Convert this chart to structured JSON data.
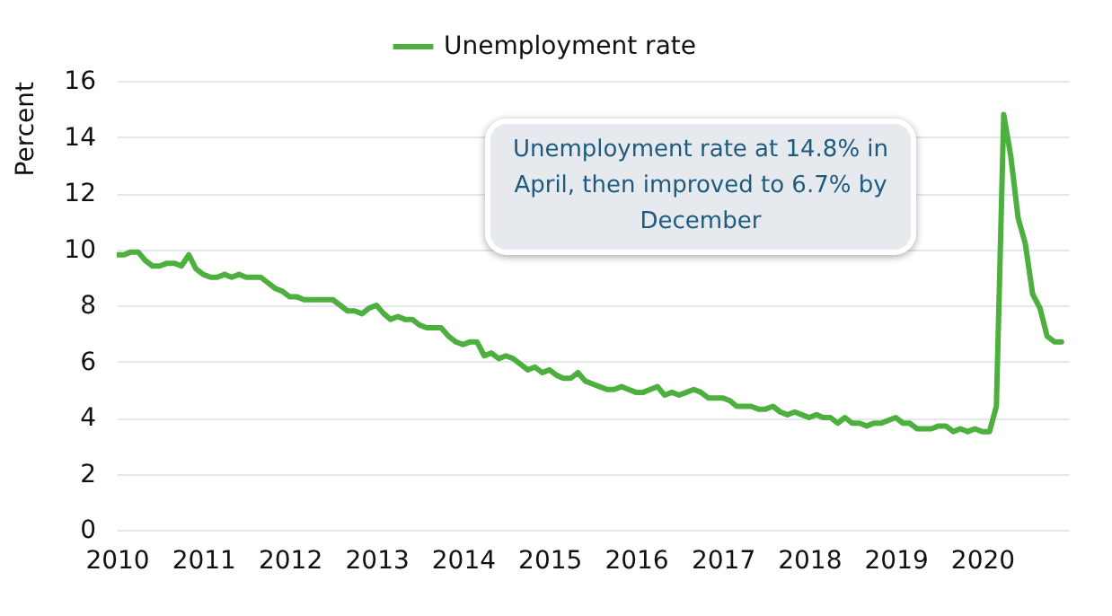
{
  "chart_data": {
    "type": "line",
    "ylabel": "Percent",
    "legend": "top",
    "grid": "y",
    "x": [
      "2010-01",
      "2010-02",
      "2010-03",
      "2010-04",
      "2010-05",
      "2010-06",
      "2010-07",
      "2010-08",
      "2010-09",
      "2010-10",
      "2010-11",
      "2010-12",
      "2011-01",
      "2011-02",
      "2011-03",
      "2011-04",
      "2011-05",
      "2011-06",
      "2011-07",
      "2011-08",
      "2011-09",
      "2011-10",
      "2011-11",
      "2011-12",
      "2012-01",
      "2012-02",
      "2012-03",
      "2012-04",
      "2012-05",
      "2012-06",
      "2012-07",
      "2012-08",
      "2012-09",
      "2012-10",
      "2012-11",
      "2012-12",
      "2013-01",
      "2013-02",
      "2013-03",
      "2013-04",
      "2013-05",
      "2013-06",
      "2013-07",
      "2013-08",
      "2013-09",
      "2013-10",
      "2013-11",
      "2013-12",
      "2014-01",
      "2014-02",
      "2014-03",
      "2014-04",
      "2014-05",
      "2014-06",
      "2014-07",
      "2014-08",
      "2014-09",
      "2014-10",
      "2014-11",
      "2014-12",
      "2015-01",
      "2015-02",
      "2015-03",
      "2015-04",
      "2015-05",
      "2015-06",
      "2015-07",
      "2015-08",
      "2015-09",
      "2015-10",
      "2015-11",
      "2015-12",
      "2016-01",
      "2016-02",
      "2016-03",
      "2016-04",
      "2016-05",
      "2016-06",
      "2016-07",
      "2016-08",
      "2016-09",
      "2016-10",
      "2016-11",
      "2016-12",
      "2017-01",
      "2017-02",
      "2017-03",
      "2017-04",
      "2017-05",
      "2017-06",
      "2017-07",
      "2017-08",
      "2017-09",
      "2017-10",
      "2017-11",
      "2017-12",
      "2018-01",
      "2018-02",
      "2018-03",
      "2018-04",
      "2018-05",
      "2018-06",
      "2018-07",
      "2018-08",
      "2018-09",
      "2018-10",
      "2018-11",
      "2018-12",
      "2019-01",
      "2019-02",
      "2019-03",
      "2019-04",
      "2019-05",
      "2019-06",
      "2019-07",
      "2019-08",
      "2019-09",
      "2019-10",
      "2019-11",
      "2019-12",
      "2020-01",
      "2020-02",
      "2020-03",
      "2020-04",
      "2020-05",
      "2020-06",
      "2020-07",
      "2020-08",
      "2020-09",
      "2020-10",
      "2020-11",
      "2020-12"
    ],
    "series": [
      {
        "name": "Unemployment rate",
        "color": "#4caf3e",
        "values": [
          9.8,
          9.8,
          9.9,
          9.9,
          9.6,
          9.4,
          9.4,
          9.5,
          9.5,
          9.4,
          9.8,
          9.3,
          9.1,
          9.0,
          9.0,
          9.1,
          9.0,
          9.1,
          9.0,
          9.0,
          9.0,
          8.8,
          8.6,
          8.5,
          8.3,
          8.3,
          8.2,
          8.2,
          8.2,
          8.2,
          8.2,
          8.0,
          7.8,
          7.8,
          7.7,
          7.9,
          8.0,
          7.7,
          7.5,
          7.6,
          7.5,
          7.5,
          7.3,
          7.2,
          7.2,
          7.2,
          6.9,
          6.7,
          6.6,
          6.7,
          6.7,
          6.2,
          6.3,
          6.1,
          6.2,
          6.1,
          5.9,
          5.7,
          5.8,
          5.6,
          5.7,
          5.5,
          5.4,
          5.4,
          5.6,
          5.3,
          5.2,
          5.1,
          5.0,
          5.0,
          5.1,
          5.0,
          4.9,
          4.9,
          5.0,
          5.1,
          4.8,
          4.9,
          4.8,
          4.9,
          5.0,
          4.9,
          4.7,
          4.7,
          4.7,
          4.6,
          4.4,
          4.4,
          4.4,
          4.3,
          4.3,
          4.4,
          4.2,
          4.1,
          4.2,
          4.1,
          4.0,
          4.1,
          4.0,
          4.0,
          3.8,
          4.0,
          3.8,
          3.8,
          3.7,
          3.8,
          3.8,
          3.9,
          4.0,
          3.8,
          3.8,
          3.6,
          3.6,
          3.6,
          3.7,
          3.7,
          3.5,
          3.6,
          3.5,
          3.6,
          3.5,
          3.5,
          4.4,
          14.8,
          13.3,
          11.1,
          10.2,
          8.4,
          7.9,
          6.9,
          6.7,
          6.7
        ]
      }
    ],
    "xlim": [
      "2010-01",
      "2021-01"
    ],
    "xticks": [
      "2010",
      "2011",
      "2012",
      "2013",
      "2014",
      "2015",
      "2016",
      "2017",
      "2018",
      "2019",
      "2020"
    ],
    "ylim": [
      0,
      16
    ],
    "yticks": [
      0,
      2,
      4,
      6,
      8,
      10,
      12,
      14,
      16
    ],
    "annotations": [
      "Unemployment rate at 14.8% in April, then improved to 6.7% by December"
    ]
  }
}
